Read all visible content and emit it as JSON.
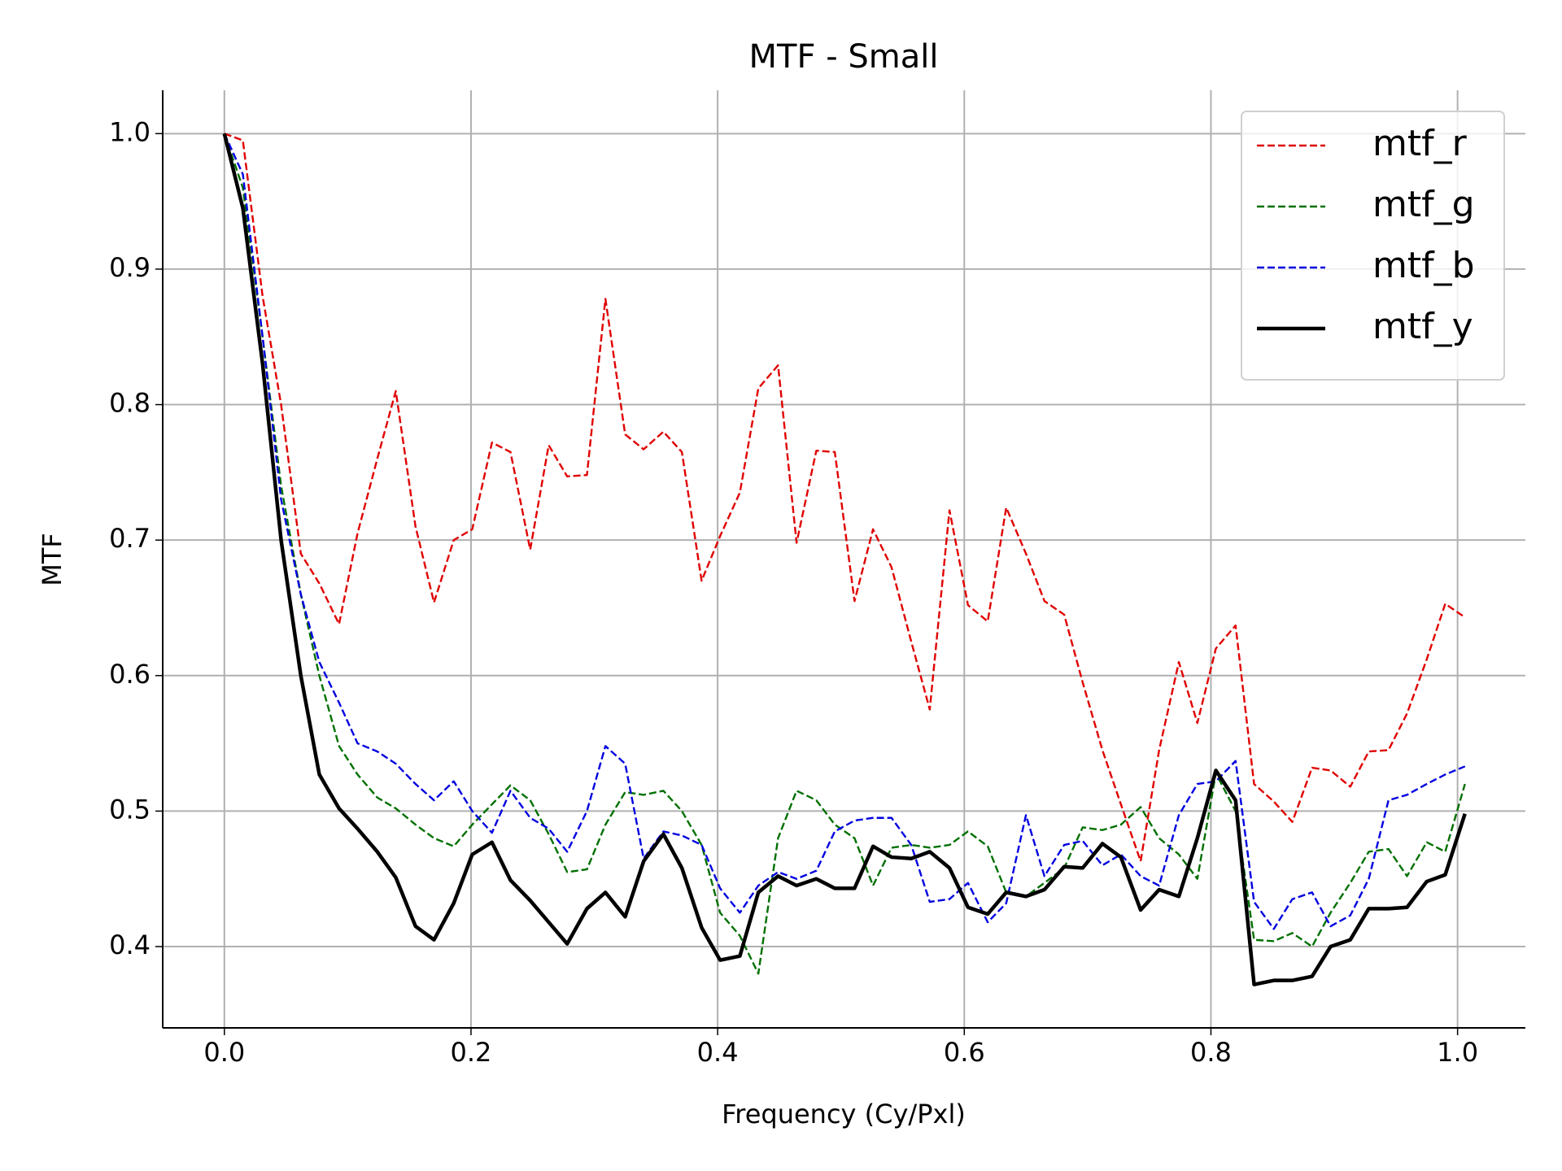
{
  "chart_data": {
    "type": "line",
    "title": "MTF - Small",
    "xlabel": "Frequency (Cy/Pxl)",
    "ylabel": "MTF",
    "x": [
      0,
      0.015,
      0.031,
      0.046,
      0.062,
      0.077,
      0.093,
      0.108,
      0.124,
      0.139,
      0.155,
      0.17,
      0.186,
      0.201,
      0.217,
      0.232,
      0.248,
      0.263,
      0.278,
      0.294,
      0.309,
      0.325,
      0.34,
      0.356,
      0.371,
      0.387,
      0.402,
      0.418,
      0.433,
      0.449,
      0.464,
      0.48,
      0.495,
      0.511,
      0.526,
      0.541,
      0.557,
      0.572,
      0.588,
      0.603,
      0.619,
      0.634,
      0.65,
      0.665,
      0.681,
      0.696,
      0.712,
      0.727,
      0.743,
      0.758,
      0.774,
      0.789,
      0.804,
      0.82,
      0.835,
      0.851,
      0.866,
      0.882,
      0.897,
      0.913,
      0.928,
      0.944,
      0.959,
      0.975,
      0.99,
      1.006
    ],
    "series": [
      {
        "name": "mtf_r",
        "color": "#e00000",
        "dashed": true,
        "values": [
          1.0,
          0.995,
          0.88,
          0.8,
          0.69,
          0.668,
          0.638,
          0.705,
          0.76,
          0.81,
          0.71,
          0.654,
          0.7,
          0.708,
          0.772,
          0.765,
          0.693,
          0.77,
          0.747,
          0.748,
          0.878,
          0.778,
          0.767,
          0.78,
          0.765,
          0.67,
          0.703,
          0.735,
          0.812,
          0.829,
          0.698,
          0.766,
          0.765,
          0.655,
          0.708,
          0.68,
          0.625,
          0.575,
          0.722,
          0.652,
          0.64,
          0.724,
          0.69,
          0.655,
          0.645,
          0.595,
          0.545,
          0.505,
          0.463,
          0.545,
          0.61,
          0.565,
          0.62,
          0.637,
          0.52,
          0.507,
          0.492,
          0.532,
          0.53,
          0.518,
          0.544,
          0.545,
          0.572,
          0.612,
          0.653,
          0.643
        ]
      },
      {
        "name": "mtf_g",
        "color": "#007000",
        "dashed": true,
        "values": [
          1.0,
          0.96,
          0.85,
          0.74,
          0.66,
          0.6,
          0.548,
          0.527,
          0.51,
          0.502,
          0.49,
          0.48,
          0.474,
          0.49,
          0.505,
          0.519,
          0.508,
          0.483,
          0.455,
          0.457,
          0.49,
          0.514,
          0.512,
          0.515,
          0.5,
          0.475,
          0.425,
          0.408,
          0.38,
          0.48,
          0.515,
          0.508,
          0.49,
          0.48,
          0.445,
          0.473,
          0.475,
          0.473,
          0.475,
          0.485,
          0.474,
          0.44,
          0.437,
          0.447,
          0.458,
          0.488,
          0.486,
          0.49,
          0.503,
          0.48,
          0.468,
          0.45,
          0.528,
          0.5,
          0.405,
          0.404,
          0.41,
          0.4,
          0.425,
          0.447,
          0.47,
          0.472,
          0.452,
          0.477,
          0.47,
          0.52
        ]
      },
      {
        "name": "mtf_b",
        "color": "#0000e0",
        "dashed": true,
        "values": [
          1.0,
          0.97,
          0.85,
          0.73,
          0.66,
          0.61,
          0.58,
          0.55,
          0.544,
          0.535,
          0.52,
          0.508,
          0.522,
          0.5,
          0.484,
          0.515,
          0.495,
          0.487,
          0.47,
          0.5,
          0.548,
          0.535,
          0.465,
          0.485,
          0.482,
          0.475,
          0.443,
          0.425,
          0.445,
          0.455,
          0.45,
          0.456,
          0.485,
          0.493,
          0.495,
          0.495,
          0.475,
          0.433,
          0.435,
          0.447,
          0.418,
          0.432,
          0.497,
          0.452,
          0.475,
          0.478,
          0.46,
          0.468,
          0.452,
          0.445,
          0.497,
          0.52,
          0.522,
          0.537,
          0.433,
          0.413,
          0.435,
          0.44,
          0.415,
          0.423,
          0.45,
          0.508,
          0.512,
          0.52,
          0.527,
          0.533
        ]
      },
      {
        "name": "mtf_y",
        "color": "#000000",
        "dashed": false,
        "values": [
          1.0,
          0.945,
          0.83,
          0.7,
          0.6,
          0.527,
          0.502,
          0.487,
          0.47,
          0.451,
          0.415,
          0.405,
          0.432,
          0.468,
          0.477,
          0.449,
          0.434,
          0.418,
          0.402,
          0.428,
          0.44,
          0.422,
          0.463,
          0.483,
          0.458,
          0.414,
          0.39,
          0.393,
          0.44,
          0.452,
          0.445,
          0.45,
          0.443,
          0.443,
          0.474,
          0.466,
          0.465,
          0.47,
          0.458,
          0.429,
          0.424,
          0.44,
          0.437,
          0.442,
          0.459,
          0.458,
          0.476,
          0.466,
          0.427,
          0.442,
          0.437,
          0.48,
          0.53,
          0.508,
          0.372,
          0.375,
          0.375,
          0.378,
          0.4,
          0.405,
          0.428,
          0.428,
          0.429,
          0.448,
          0.453,
          0.498
        ]
      }
    ],
    "xlim": [
      -0.05,
      1.055
    ],
    "ylim": [
      0.34,
      1.032
    ],
    "xticks": [
      {
        "value": 0,
        "label": "0.0"
      },
      0.2,
      0.4,
      0.6,
      0.8,
      {
        "value": 1,
        "label": "1.0"
      }
    ],
    "yticks": [
      0.4,
      0.5,
      0.6,
      0.7,
      0.8,
      0.9,
      {
        "value": 1,
        "label": "1.0"
      }
    ],
    "grid": true,
    "legend": "upper right"
  }
}
